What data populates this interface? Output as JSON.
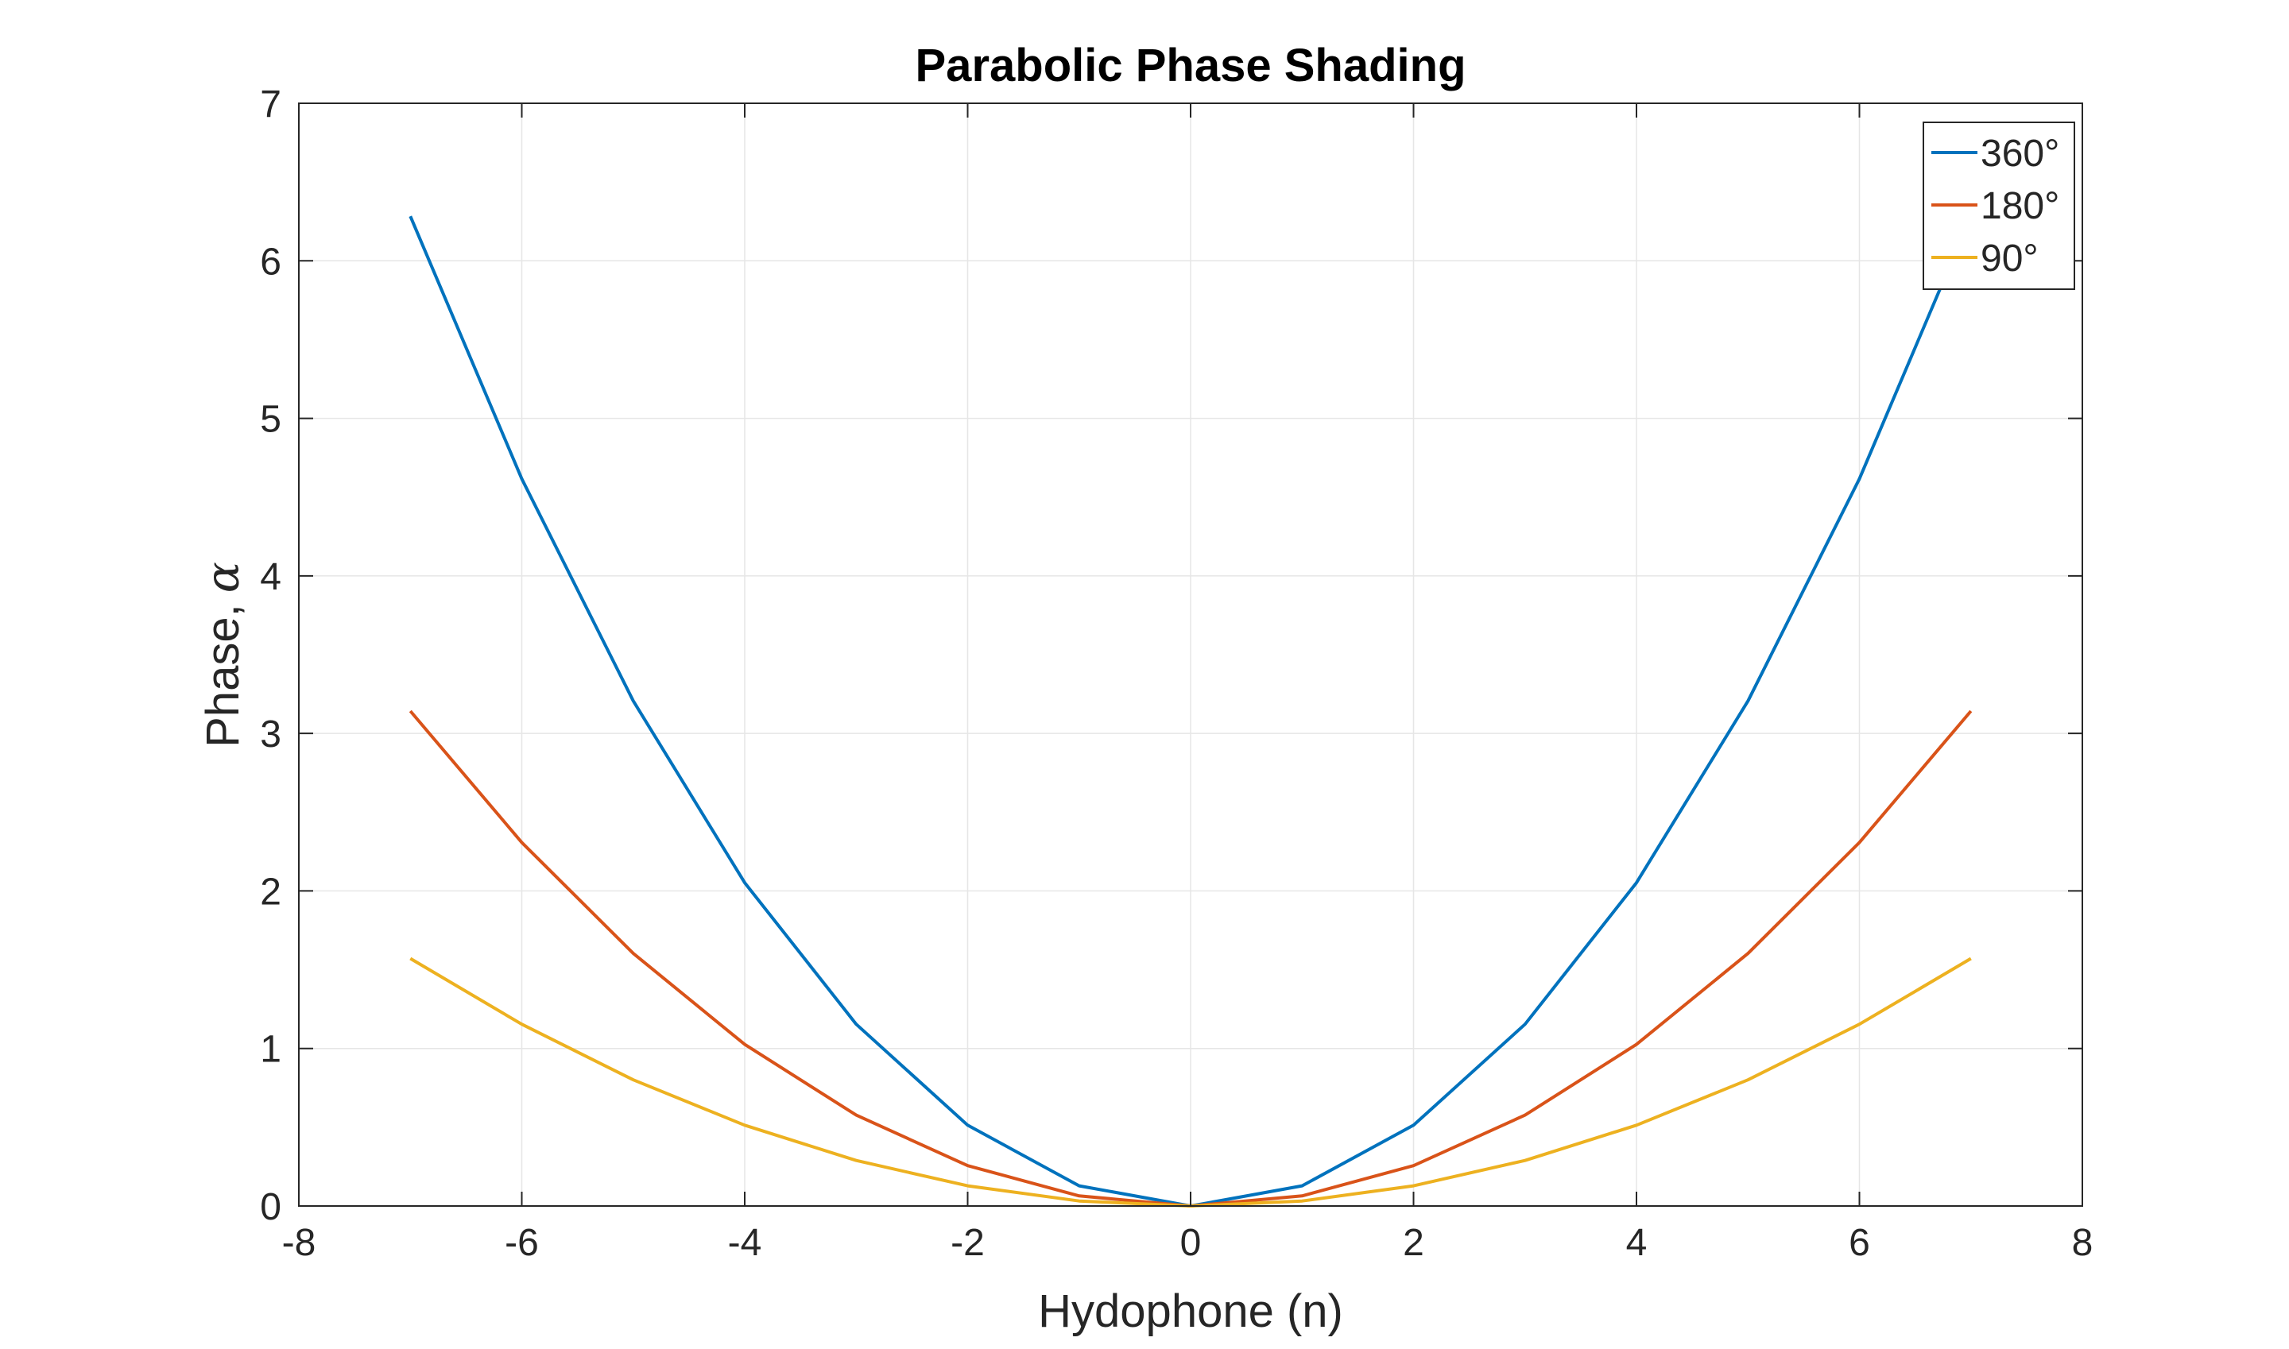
{
  "chart_data": {
    "type": "line",
    "title": "Parabolic Phase Shading",
    "xlabel": "Hydophone (n)",
    "ylabel": "Phase,",
    "ylabel_symbol": "α",
    "xlim": [
      -8,
      8
    ],
    "ylim": [
      0,
      7
    ],
    "xticks": [
      -8,
      -6,
      -4,
      -2,
      0,
      2,
      4,
      6,
      8
    ],
    "yticks": [
      0,
      1,
      2,
      3,
      4,
      5,
      6,
      7
    ],
    "grid": true,
    "legend_position": "top-right",
    "x": [
      -7,
      -6,
      -5,
      -4,
      -3,
      -2,
      -1,
      0,
      1,
      2,
      3,
      4,
      5,
      6,
      7
    ],
    "series": [
      {
        "name": "360°",
        "color": "#0072BD",
        "values": [
          6.283,
          4.616,
          3.206,
          2.052,
          1.154,
          0.513,
          0.128,
          0,
          0.128,
          0.513,
          1.154,
          2.052,
          3.206,
          4.616,
          6.283
        ]
      },
      {
        "name": "180°",
        "color": "#D95319",
        "values": [
          3.142,
          2.308,
          1.603,
          1.026,
          0.577,
          0.256,
          0.064,
          0,
          0.064,
          0.256,
          0.577,
          1.026,
          1.603,
          2.308,
          3.142
        ]
      },
      {
        "name": "90°",
        "color": "#EDB120",
        "values": [
          1.571,
          1.154,
          0.801,
          0.513,
          0.289,
          0.128,
          0.032,
          0,
          0.032,
          0.128,
          0.289,
          0.513,
          0.801,
          1.154,
          1.571
        ]
      }
    ]
  }
}
